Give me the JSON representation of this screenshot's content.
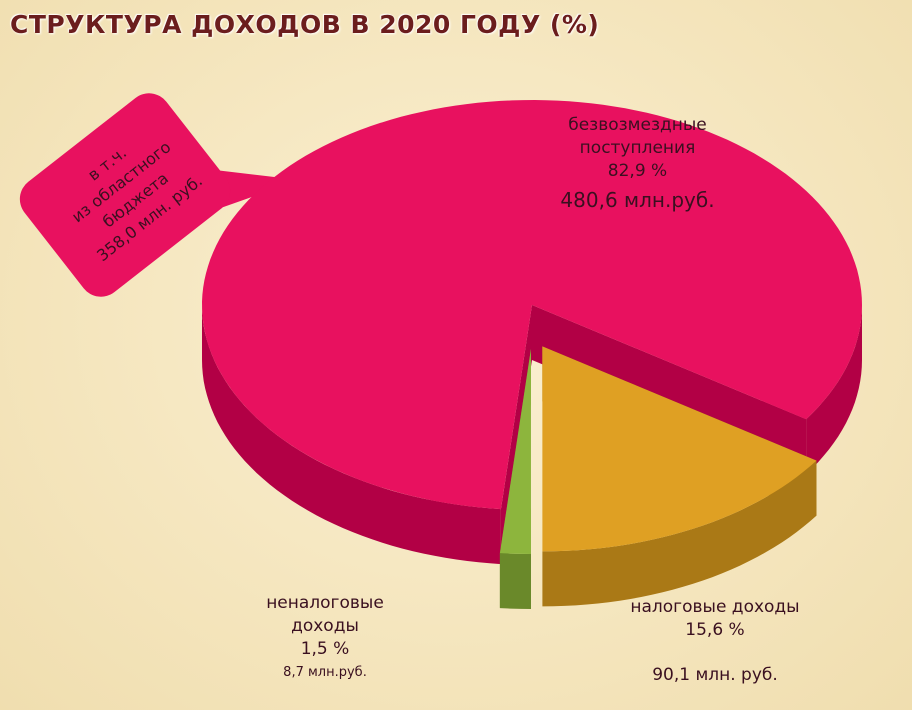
{
  "chart_data": {
    "type": "pie",
    "title": "СТРУКТУРА ДОХОДОВ В 2020 ГОДУ (%)",
    "categories": [
      "безвозмездные поступления",
      "налоговые доходы",
      "неналоговые доходы"
    ],
    "values": [
      82.9,
      15.6,
      1.5
    ],
    "value_labels": [
      "82,9 %",
      "15,6 %",
      "1,5 %"
    ],
    "amounts": [
      "480,6 млн.руб.",
      "90,1 млн. руб.",
      "8,7 млн.руб."
    ],
    "colors": [
      "#e8115f",
      "#dfa023",
      "#8db53d"
    ],
    "callout": [
      "в т.ч.",
      "из областного",
      "бюджета",
      "358,0 млн. руб."
    ]
  }
}
